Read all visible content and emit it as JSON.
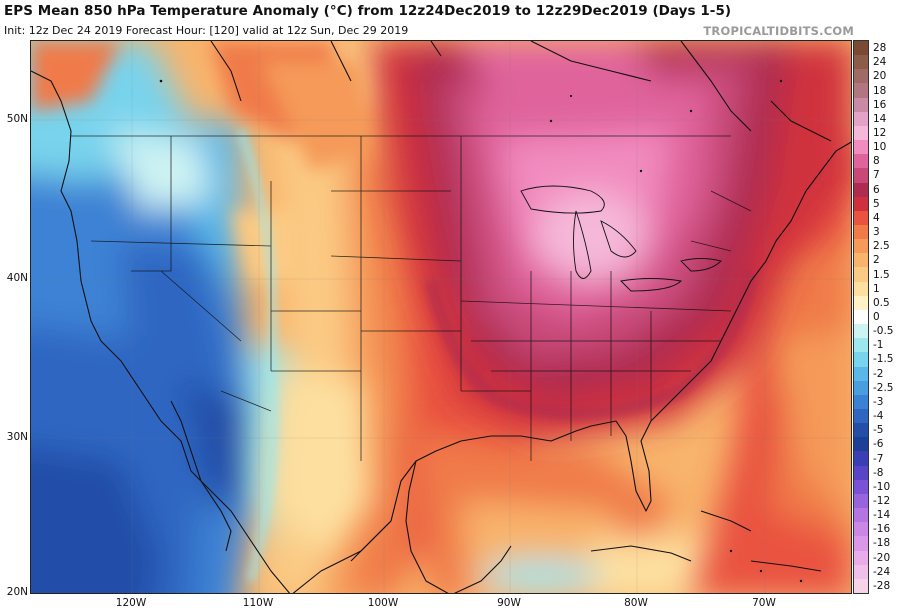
{
  "header": {
    "title": "EPS Mean 850 hPa Temperature Anomaly (°C) from 12z24Dec2019 to 12z29Dec2019 (Days 1-5)",
    "subtitle": "Init: 12z Dec 24 2019   Forecast Hour: [120]   valid at 12z Sun, Dec 29 2019",
    "watermark": "TROPICALTIDBITS.COM"
  },
  "map": {
    "latitude_labels": [
      "50N",
      "40N",
      "30N",
      "20N"
    ],
    "longitude_labels": [
      "120W",
      "110W",
      "100W",
      "90W",
      "80W",
      "70W"
    ]
  },
  "colorbar": {
    "unit": "°C",
    "levels": [
      {
        "label": "28",
        "color": "#7a4a32"
      },
      {
        "label": "24",
        "color": "#8d5b4a"
      },
      {
        "label": "20",
        "color": "#a06a67"
      },
      {
        "label": "18",
        "color": "#b27680"
      },
      {
        "label": "16",
        "color": "#c98aa5"
      },
      {
        "label": "14",
        "color": "#e3a3c8"
      },
      {
        "label": "12",
        "color": "#f5b8d8"
      },
      {
        "label": "10",
        "color": "#f28cc0"
      },
      {
        "label": "8",
        "color": "#e0649c"
      },
      {
        "label": "7",
        "color": "#c84878"
      },
      {
        "label": "6",
        "color": "#ad2c50"
      },
      {
        "label": "5",
        "color": "#d0303d"
      },
      {
        "label": "4",
        "color": "#e9533f"
      },
      {
        "label": "3",
        "color": "#f07a48"
      },
      {
        "label": "2.5",
        "color": "#f59a58"
      },
      {
        "label": "2",
        "color": "#f8b46c"
      },
      {
        "label": "1.5",
        "color": "#fbca84"
      },
      {
        "label": "1",
        "color": "#fde0a0"
      },
      {
        "label": "0.5",
        "color": "#fff1c8"
      },
      {
        "label": "0",
        "color": "#ffffff"
      },
      {
        "label": "-0.5",
        "color": "#cdf3f3"
      },
      {
        "label": "-1",
        "color": "#9de7ee"
      },
      {
        "label": "-1.5",
        "color": "#78d3ec"
      },
      {
        "label": "-2",
        "color": "#5ab8e8"
      },
      {
        "label": "-2.5",
        "color": "#4a9ee0"
      },
      {
        "label": "-3",
        "color": "#3c82d4"
      },
      {
        "label": "-4",
        "color": "#2e66c2"
      },
      {
        "label": "-5",
        "color": "#244ea8"
      },
      {
        "label": "-6",
        "color": "#1d3f96"
      },
      {
        "label": "-7",
        "color": "#3a3fb4"
      },
      {
        "label": "-8",
        "color": "#5a44c8"
      },
      {
        "label": "-10",
        "color": "#7a52d6"
      },
      {
        "label": "-12",
        "color": "#9864de"
      },
      {
        "label": "-14",
        "color": "#b474e2"
      },
      {
        "label": "-16",
        "color": "#cc86e6"
      },
      {
        "label": "-18",
        "color": "#dc98e8"
      },
      {
        "label": "-20",
        "color": "#e8ace8"
      },
      {
        "label": "-24",
        "color": "#efc0e8"
      },
      {
        "label": "-28",
        "color": "#f5d4ea"
      }
    ]
  }
}
